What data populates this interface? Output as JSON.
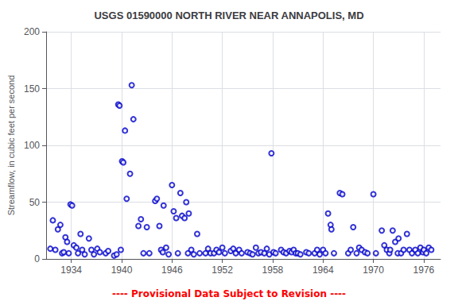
{
  "chart_data": {
    "type": "scatter",
    "title": "USGS 01590000 NORTH RIVER NEAR ANNAPOLIS, MD",
    "ylabel": "Streamflow, in cubic feet per second",
    "annotations": [
      {
        "text": "---- Provisional Data Subject to Revision ----",
        "color": "#ff0000"
      }
    ],
    "color": "#0000cc",
    "marker": "open_circle",
    "grid": true,
    "xlim": [
      1931.0,
      1978.0
    ],
    "ylim": [
      0,
      200
    ],
    "xticks": [
      1934,
      1940,
      1946,
      1952,
      1958,
      1964,
      1970,
      1976
    ],
    "yticks": [
      0,
      50,
      100,
      150,
      200
    ],
    "x": [
      1931.5,
      1931.8,
      1932.1,
      1932.4,
      1932.7,
      1932.9,
      1933.1,
      1933.3,
      1933.5,
      1933.7,
      1933.9,
      1934.1,
      1934.3,
      1934.6,
      1934.8,
      1935.1,
      1935.3,
      1935.6,
      1936.1,
      1936.4,
      1936.7,
      1937.1,
      1937.4,
      1938.1,
      1938.4,
      1939.1,
      1939.4,
      1939.6,
      1939.75,
      1939.9,
      1940.05,
      1940.2,
      1940.4,
      1940.6,
      1941.0,
      1941.2,
      1941.4,
      1942.0,
      1942.3,
      1942.6,
      1943.0,
      1943.3,
      1944.0,
      1944.2,
      1944.5,
      1944.7,
      1944.9,
      1945.0,
      1945.3,
      1945.6,
      1946.0,
      1946.2,
      1946.5,
      1946.7,
      1947.0,
      1947.2,
      1947.5,
      1947.7,
      1947.9,
      1948.0,
      1948.3,
      1948.6,
      1949.0,
      1949.3,
      1950.0,
      1950.3,
      1950.6,
      1951.0,
      1951.3,
      1951.6,
      1952.0,
      1952.3,
      1953.0,
      1953.3,
      1953.6,
      1954.0,
      1954.3,
      1955.0,
      1955.3,
      1955.6,
      1956.0,
      1956.3,
      1956.6,
      1957.0,
      1957.3,
      1957.6,
      1957.85,
      1958.1,
      1958.35,
      1959.0,
      1959.3,
      1959.6,
      1960.0,
      1960.25,
      1960.5,
      1960.75,
      1961.0,
      1961.3,
      1962.0,
      1962.3,
      1963.0,
      1963.3,
      1963.6,
      1964.0,
      1964.3,
      1964.6,
      1964.9,
      1965.0,
      1965.3,
      1966.0,
      1966.3,
      1967.0,
      1967.3,
      1967.6,
      1968.0,
      1968.3,
      1968.6,
      1969.0,
      1969.3,
      1970.0,
      1970.3,
      1971.0,
      1971.3,
      1971.6,
      1971.9,
      1972.0,
      1972.3,
      1972.6,
      1972.9,
      1973.0,
      1973.3,
      1973.6,
      1974.0,
      1974.3,
      1974.6,
      1975.0,
      1975.3,
      1975.6,
      1975.9,
      1976.0,
      1976.3,
      1976.6,
      1976.9
    ],
    "values": [
      9,
      34,
      8,
      26,
      30,
      5,
      6,
      19,
      15,
      5,
      48,
      47,
      12,
      10,
      5,
      22,
      8,
      4,
      18,
      8,
      4,
      9,
      6,
      5,
      7,
      3,
      4,
      136,
      135,
      8,
      86,
      85,
      113,
      53,
      75,
      153,
      123,
      29,
      35,
      5,
      28,
      5,
      51,
      53,
      29,
      8,
      6,
      47,
      10,
      4,
      65,
      42,
      36,
      5,
      58,
      38,
      36,
      50,
      5,
      40,
      8,
      4,
      22,
      5,
      5,
      9,
      5,
      5,
      8,
      6,
      10,
      5,
      7,
      9,
      5,
      8,
      5,
      6,
      5,
      4,
      10,
      5,
      6,
      5,
      9,
      4,
      93,
      6,
      5,
      8,
      6,
      5,
      7,
      6,
      8,
      5,
      5,
      4,
      6,
      5,
      5,
      8,
      4,
      8,
      5,
      40,
      30,
      26,
      5,
      58,
      57,
      5,
      8,
      28,
      5,
      10,
      8,
      6,
      5,
      57,
      5,
      25,
      12,
      8,
      5,
      8,
      25,
      15,
      5,
      18,
      5,
      8,
      22,
      8,
      5,
      8,
      5,
      10,
      6,
      8,
      5,
      10,
      8
    ]
  }
}
